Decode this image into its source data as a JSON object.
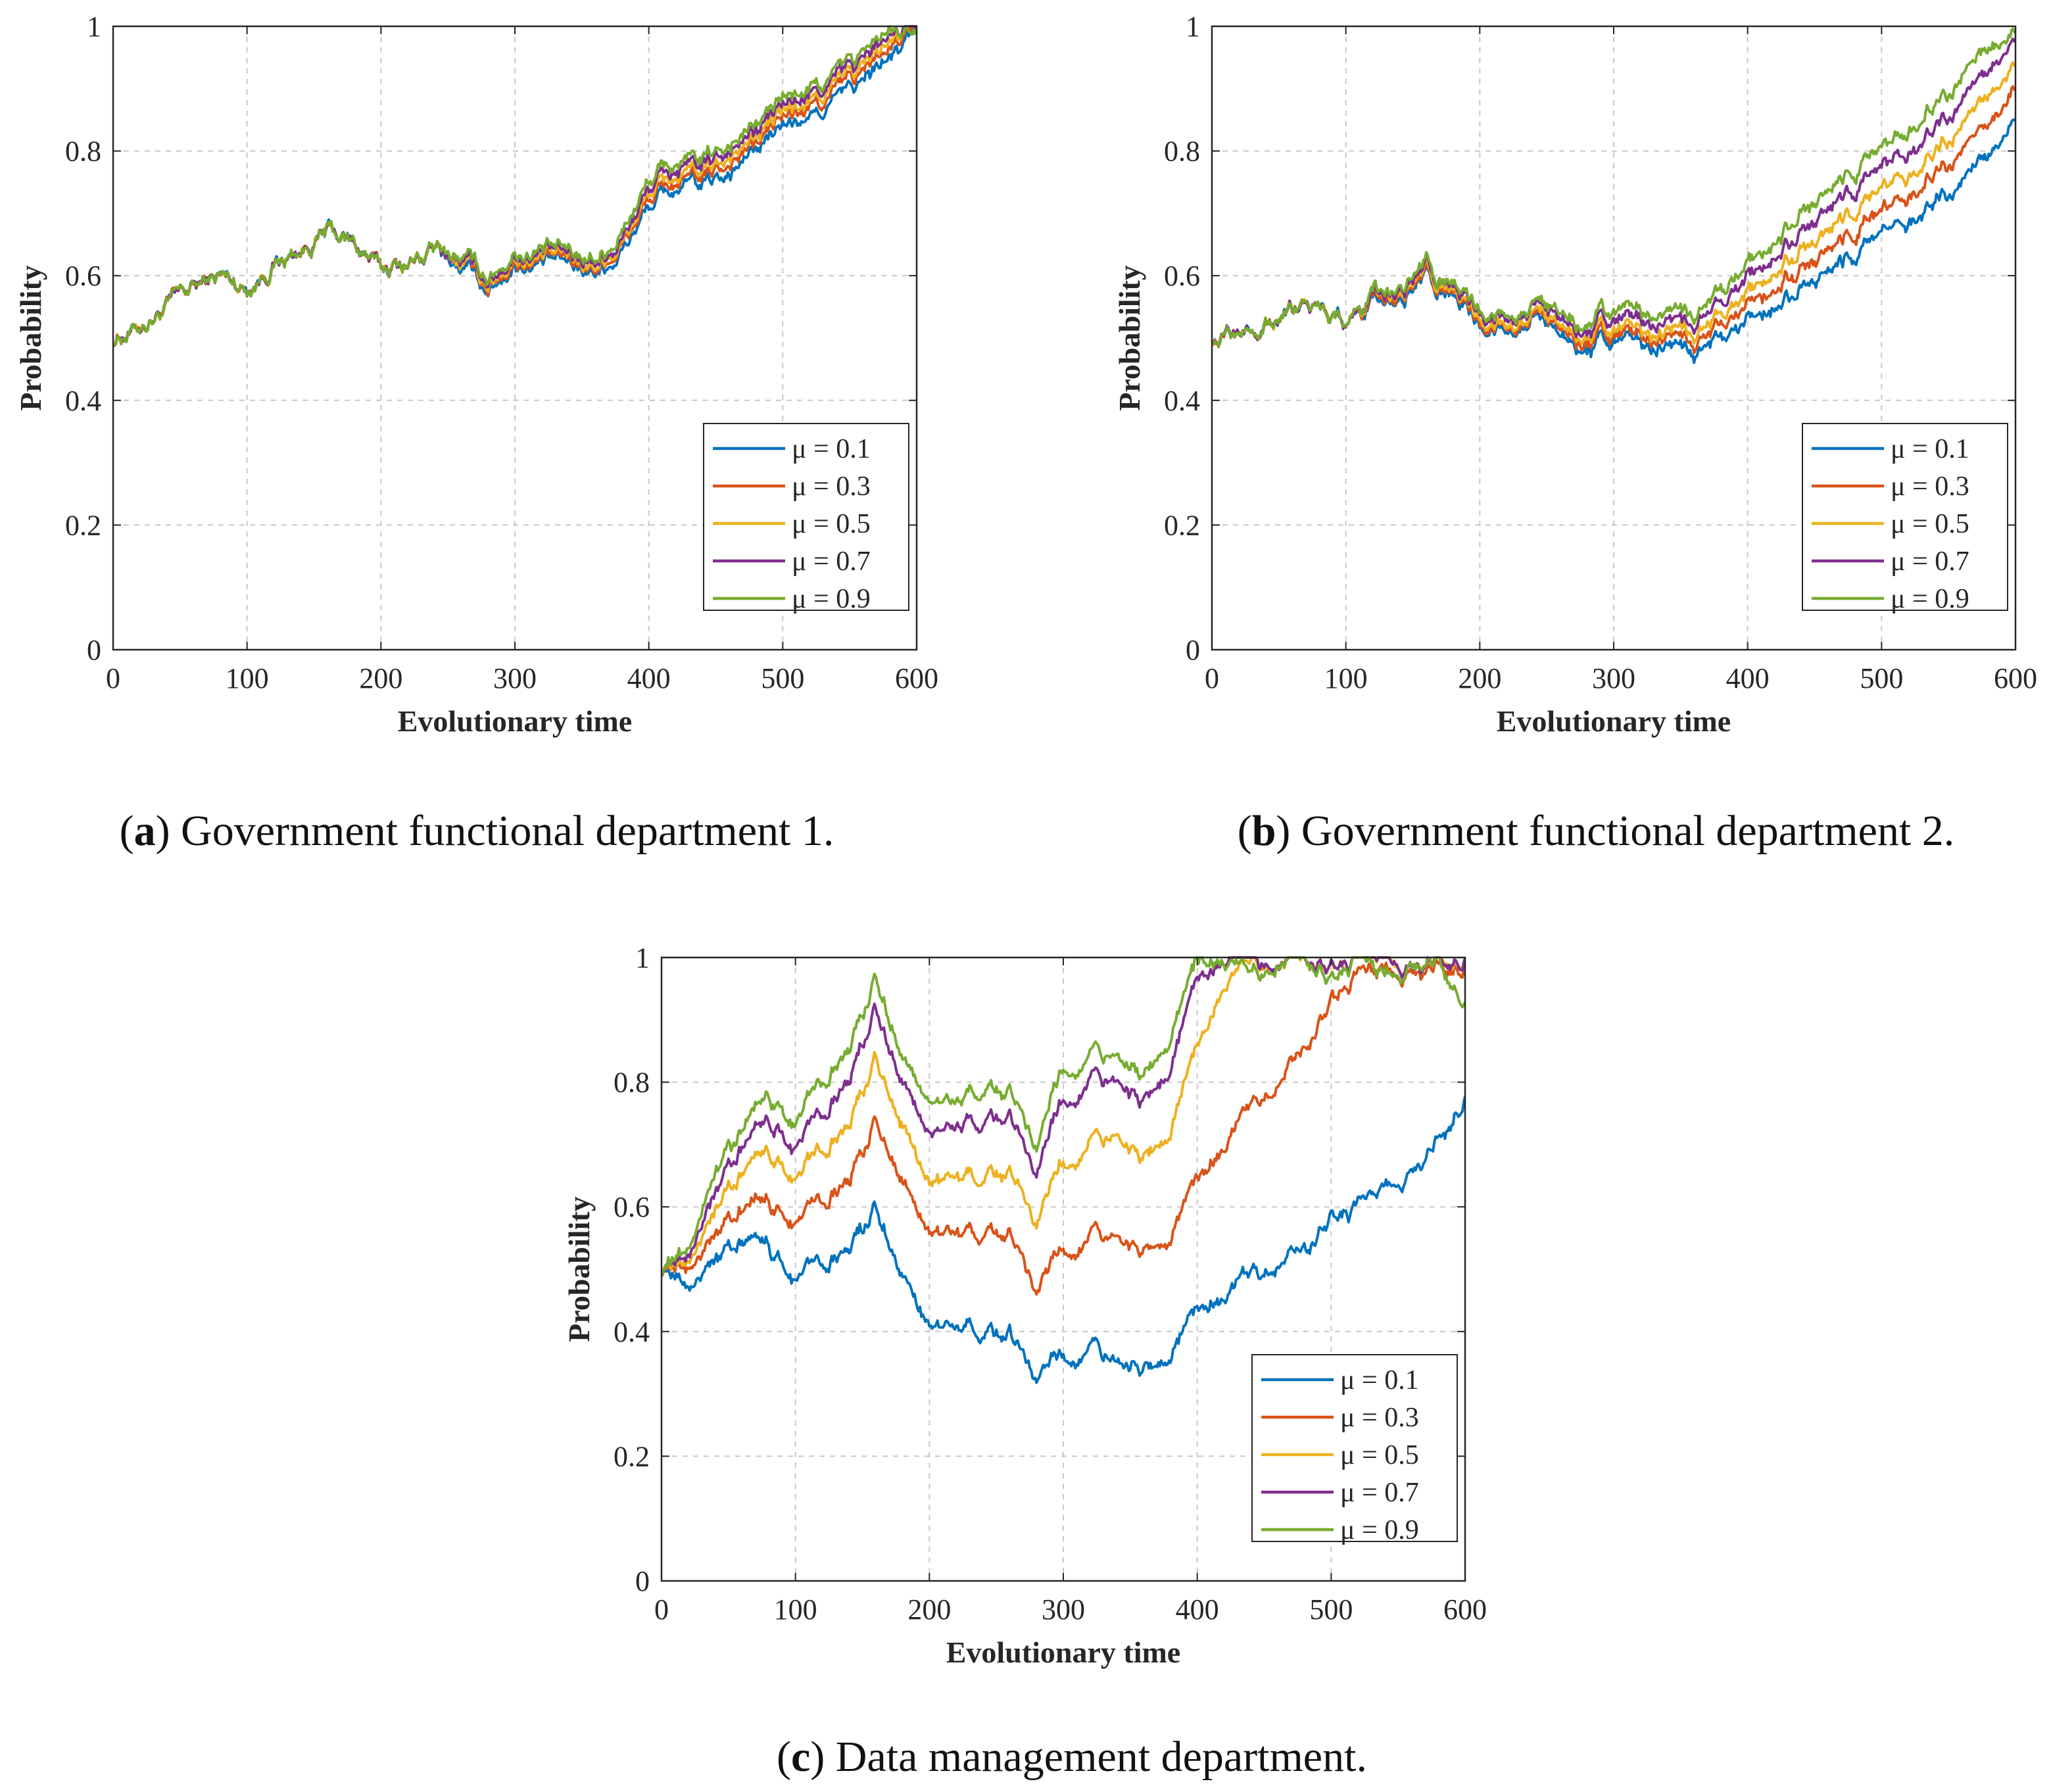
{
  "colors": {
    "series": [
      "#0072BD",
      "#D95319",
      "#EDB120",
      "#7E2F8E",
      "#77AC30"
    ],
    "axis": "#262626",
    "grid": "#c8c8c8"
  },
  "chart_data": [
    {
      "type": "line",
      "panel": "a",
      "caption_label": "a",
      "caption_text": "Government functional department 1.",
      "xlabel": "Evolutionary time",
      "ylabel": "Probability",
      "xlim": [
        0,
        600
      ],
      "ylim": [
        0,
        1
      ],
      "xticks": [
        "0",
        "100",
        "200",
        "300",
        "400",
        "500",
        "600"
      ],
      "yticks": [
        "0",
        "0.2",
        "0.4",
        "0.6",
        "0.8",
        "1"
      ],
      "grid": true,
      "legend_position": "lower-right",
      "x": [
        0,
        20,
        40,
        60,
        80,
        100,
        120,
        140,
        160,
        180,
        200,
        220,
        240,
        260,
        280,
        300,
        320,
        340,
        360,
        380,
        400,
        420,
        440,
        460,
        480,
        500,
        520,
        540,
        560,
        580,
        600
      ],
      "series": [
        {
          "name": "μ = 0.1",
          "values": [
            0.5,
            0.52,
            0.55,
            0.58,
            0.6,
            0.58,
            0.62,
            0.64,
            0.67,
            0.65,
            0.61,
            0.62,
            0.64,
            0.61,
            0.58,
            0.62,
            0.62,
            0.62,
            0.61,
            0.64,
            0.71,
            0.74,
            0.74,
            0.77,
            0.8,
            0.84,
            0.85,
            0.88,
            0.91,
            0.95,
            0.99
          ]
        },
        {
          "name": "μ = 0.3",
          "values": [
            0.5,
            0.52,
            0.55,
            0.58,
            0.6,
            0.58,
            0.62,
            0.64,
            0.67,
            0.65,
            0.61,
            0.62,
            0.64,
            0.62,
            0.585,
            0.625,
            0.625,
            0.625,
            0.615,
            0.65,
            0.72,
            0.75,
            0.75,
            0.785,
            0.81,
            0.855,
            0.865,
            0.895,
            0.925,
            0.965,
            0.995
          ]
        },
        {
          "name": "μ = 0.5",
          "values": [
            0.5,
            0.52,
            0.55,
            0.58,
            0.6,
            0.58,
            0.62,
            0.64,
            0.67,
            0.65,
            0.61,
            0.62,
            0.64,
            0.62,
            0.59,
            0.63,
            0.63,
            0.63,
            0.62,
            0.655,
            0.73,
            0.76,
            0.76,
            0.795,
            0.82,
            0.865,
            0.875,
            0.905,
            0.935,
            0.975,
            1.0
          ]
        },
        {
          "name": "μ = 0.7",
          "values": [
            0.5,
            0.52,
            0.55,
            0.58,
            0.6,
            0.58,
            0.62,
            0.64,
            0.67,
            0.65,
            0.61,
            0.62,
            0.64,
            0.625,
            0.595,
            0.635,
            0.635,
            0.635,
            0.625,
            0.66,
            0.74,
            0.77,
            0.77,
            0.805,
            0.83,
            0.875,
            0.885,
            0.915,
            0.945,
            0.985,
            1.0
          ]
        },
        {
          "name": "μ = 0.9",
          "values": [
            0.5,
            0.52,
            0.55,
            0.58,
            0.6,
            0.58,
            0.62,
            0.64,
            0.67,
            0.65,
            0.61,
            0.62,
            0.64,
            0.63,
            0.6,
            0.64,
            0.64,
            0.64,
            0.63,
            0.67,
            0.75,
            0.78,
            0.78,
            0.815,
            0.84,
            0.885,
            0.895,
            0.925,
            0.955,
            0.995,
            0.98
          ]
        }
      ]
    },
    {
      "type": "line",
      "panel": "b",
      "caption_label": "b",
      "caption_text": "Government functional department 2.",
      "xlabel": "Evolutionary time",
      "ylabel": "Probability",
      "xlim": [
        0,
        600
      ],
      "ylim": [
        0,
        1
      ],
      "xticks": [
        "0",
        "100",
        "200",
        "300",
        "400",
        "500",
        "600"
      ],
      "yticks": [
        "0",
        "0.2",
        "0.4",
        "0.6",
        "0.8",
        "1"
      ],
      "grid": true,
      "legend_position": "lower-right",
      "x": [
        0,
        20,
        40,
        60,
        80,
        100,
        120,
        140,
        160,
        180,
        200,
        220,
        240,
        260,
        280,
        300,
        320,
        340,
        360,
        380,
        400,
        420,
        440,
        460,
        480,
        500,
        520,
        540,
        560,
        580,
        600
      ],
      "series": [
        {
          "name": "μ = 0.1",
          "values": [
            0.5,
            0.51,
            0.53,
            0.54,
            0.55,
            0.53,
            0.55,
            0.56,
            0.59,
            0.56,
            0.52,
            0.52,
            0.53,
            0.51,
            0.47,
            0.49,
            0.49,
            0.48,
            0.47,
            0.49,
            0.52,
            0.55,
            0.58,
            0.6,
            0.64,
            0.67,
            0.69,
            0.72,
            0.75,
            0.79,
            0.85
          ]
        },
        {
          "name": "μ = 0.3",
          "values": [
            0.5,
            0.51,
            0.53,
            0.54,
            0.55,
            0.53,
            0.555,
            0.565,
            0.595,
            0.565,
            0.525,
            0.525,
            0.535,
            0.52,
            0.48,
            0.5,
            0.5,
            0.495,
            0.485,
            0.51,
            0.545,
            0.58,
            0.61,
            0.635,
            0.675,
            0.705,
            0.73,
            0.765,
            0.8,
            0.84,
            0.9
          ]
        },
        {
          "name": "μ = 0.5",
          "values": [
            0.5,
            0.51,
            0.53,
            0.54,
            0.55,
            0.53,
            0.56,
            0.57,
            0.6,
            0.57,
            0.53,
            0.53,
            0.54,
            0.525,
            0.49,
            0.51,
            0.51,
            0.505,
            0.5,
            0.525,
            0.565,
            0.605,
            0.64,
            0.665,
            0.71,
            0.74,
            0.765,
            0.8,
            0.84,
            0.885,
            0.94
          ]
        },
        {
          "name": "μ = 0.7",
          "values": [
            0.5,
            0.51,
            0.53,
            0.54,
            0.55,
            0.53,
            0.56,
            0.575,
            0.605,
            0.575,
            0.54,
            0.54,
            0.55,
            0.535,
            0.5,
            0.525,
            0.525,
            0.52,
            0.515,
            0.545,
            0.59,
            0.63,
            0.67,
            0.7,
            0.745,
            0.775,
            0.8,
            0.84,
            0.88,
            0.925,
            0.98
          ]
        },
        {
          "name": "μ = 0.9",
          "values": [
            0.5,
            0.51,
            0.53,
            0.54,
            0.55,
            0.53,
            0.565,
            0.58,
            0.61,
            0.58,
            0.545,
            0.545,
            0.555,
            0.545,
            0.51,
            0.54,
            0.54,
            0.535,
            0.53,
            0.565,
            0.61,
            0.655,
            0.7,
            0.73,
            0.775,
            0.805,
            0.835,
            0.875,
            0.92,
            0.96,
            0.99
          ]
        }
      ]
    },
    {
      "type": "line",
      "panel": "c",
      "caption_label": "c",
      "caption_text": "Data management department.",
      "xlabel": "Evolutionary time",
      "ylabel": "Probability",
      "xlim": [
        0,
        600
      ],
      "ylim": [
        0,
        1
      ],
      "xticks": [
        "0",
        "100",
        "200",
        "300",
        "400",
        "500",
        "600"
      ],
      "yticks": [
        "0",
        "0.2",
        "0.4",
        "0.6",
        "0.8",
        "1"
      ],
      "grid": true,
      "legend_position": "lower-right",
      "x": [
        0,
        20,
        40,
        60,
        80,
        100,
        120,
        140,
        160,
        180,
        200,
        220,
        240,
        260,
        280,
        300,
        320,
        340,
        360,
        380,
        400,
        420,
        440,
        460,
        480,
        500,
        520,
        540,
        560,
        580,
        600
      ],
      "series": [
        {
          "name": "μ = 0.1",
          "values": [
            0.5,
            0.47,
            0.51,
            0.54,
            0.55,
            0.48,
            0.52,
            0.54,
            0.6,
            0.5,
            0.41,
            0.4,
            0.41,
            0.39,
            0.33,
            0.37,
            0.37,
            0.36,
            0.33,
            0.37,
            0.43,
            0.46,
            0.49,
            0.51,
            0.53,
            0.58,
            0.6,
            0.63,
            0.66,
            0.71,
            0.78
          ]
        },
        {
          "name": "μ = 0.3",
          "values": [
            0.5,
            0.5,
            0.55,
            0.59,
            0.62,
            0.57,
            0.62,
            0.65,
            0.74,
            0.65,
            0.56,
            0.55,
            0.57,
            0.55,
            0.47,
            0.54,
            0.55,
            0.56,
            0.52,
            0.56,
            0.64,
            0.7,
            0.76,
            0.8,
            0.85,
            0.93,
            0.97,
            0.98,
            0.98,
            0.99,
            0.99
          ]
        },
        {
          "name": "μ = 0.5",
          "values": [
            0.5,
            0.51,
            0.59,
            0.65,
            0.7,
            0.64,
            0.7,
            0.74,
            0.84,
            0.74,
            0.64,
            0.64,
            0.66,
            0.65,
            0.58,
            0.68,
            0.7,
            0.72,
            0.67,
            0.73,
            0.85,
            0.96,
            0.99,
            0.99,
            1.0,
            0.98,
            1.0,
            1.0,
            0.99,
            1.0,
            1.0
          ]
        },
        {
          "name": "μ = 0.7",
          "values": [
            0.5,
            0.52,
            0.62,
            0.69,
            0.75,
            0.69,
            0.76,
            0.81,
            0.92,
            0.81,
            0.72,
            0.72,
            0.75,
            0.74,
            0.66,
            0.78,
            0.8,
            0.81,
            0.76,
            0.83,
            0.96,
            1.0,
            1.0,
            0.99,
            1.0,
            0.98,
            1.0,
            1.0,
            0.99,
            1.0,
            1.0
          ]
        },
        {
          "name": "μ = 0.9",
          "values": [
            0.5,
            0.53,
            0.65,
            0.72,
            0.79,
            0.73,
            0.81,
            0.86,
            0.97,
            0.85,
            0.77,
            0.76,
            0.8,
            0.78,
            0.7,
            0.83,
            0.84,
            0.85,
            0.8,
            0.88,
            0.99,
            1.0,
            0.97,
            0.99,
            1.0,
            0.96,
            1.0,
            0.97,
            0.99,
            1.0,
            0.93
          ]
        }
      ]
    }
  ]
}
